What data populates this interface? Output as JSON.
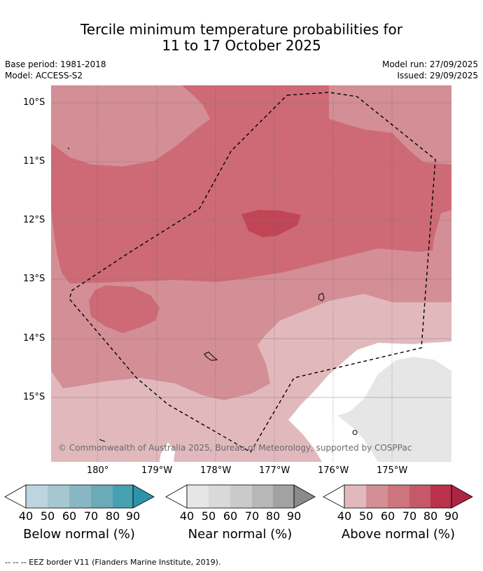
{
  "title_line1": "Tercile minimum temperature probabilities for",
  "title_line2": "11 to 17 October 2025",
  "meta_left": [
    "Base period: 1981-2018",
    "Model: ACCESS-S2"
  ],
  "meta_right": [
    "Model run: 27/09/2025",
    "Issued: 29/09/2025"
  ],
  "lat_labels": [
    "10°S",
    "11°S",
    "12°S",
    "13°S",
    "14°S",
    "15°S"
  ],
  "lon_labels": [
    "180°",
    "179°W",
    "178°W",
    "177°W",
    "176°W",
    "175°W"
  ],
  "copyright": "© Commonwealth of Australia 2025, Bureau of Meteorology, supported by COSPPac",
  "colorbars": [
    {
      "name": "Below normal (%)",
      "ticks": [
        "40",
        "50",
        "60",
        "70",
        "80",
        "90"
      ],
      "colors": [
        "#bcd5de",
        "#a5c7cf",
        "#88b7c4",
        "#6baab7",
        "#45a0b1",
        "#2d93ad"
      ]
    },
    {
      "name": "Near normal (%)",
      "ticks": [
        "40",
        "50",
        "60",
        "70",
        "80",
        "90"
      ],
      "colors": [
        "#e6e6e6",
        "#d9d9d9",
        "#cacaca",
        "#b7b7b7",
        "#a2a2a2",
        "#8a8a8a"
      ]
    },
    {
      "name": "Above normal (%)",
      "ticks": [
        "40",
        "50",
        "60",
        "70",
        "80",
        "90"
      ],
      "colors": [
        "#e1b9bd",
        "#d48e96",
        "#cd747d",
        "#c45a69",
        "#b9314b",
        "#ad2443"
      ]
    }
  ],
  "footnote": "--  --  -- EEZ border V11 (Flanders Marine Institute, 2019).",
  "colors": {
    "above_40_50": "#e1b9bd",
    "above_50_60": "#d48e96",
    "above_60_70": "#cd6a75",
    "above_70_80": "#c24555",
    "near_40_50": "#e6e6e6"
  }
}
